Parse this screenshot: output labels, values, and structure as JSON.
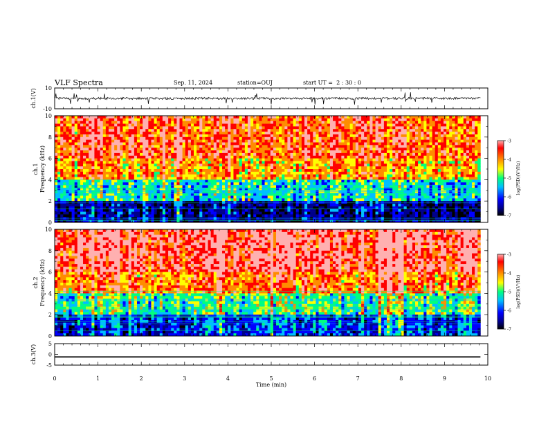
{
  "header": {
    "title": "VLF Spectra",
    "date": "Sep. 11, 2024",
    "station": "station=OUJ",
    "start": "start UT =  2 : 30 : 0"
  },
  "colors": {
    "spectrogram_scale": [
      "#000000",
      "#00008b",
      "#0000ff",
      "#00bfff",
      "#00ff7f",
      "#ffff00",
      "#ff8c00",
      "#ff0000",
      "#ffb0b0"
    ],
    "trace": "#000000",
    "frame": "#000000"
  },
  "chart_data": [
    {
      "type": "line",
      "name": "waveform-ch1",
      "ylabel": "ch.1(V)",
      "ylim": [
        -10,
        10
      ],
      "yticks": [
        "10",
        "-10"
      ],
      "x_range_min": [
        0,
        9.83
      ],
      "baseline": 0,
      "description_values": "continuous noise around 0 V with spikes up to about ±6 V"
    },
    {
      "type": "heatmap",
      "name": "spectrogram-ch1",
      "ylabel_top": "ch.1",
      "ylabel": "Frequency (kHz)",
      "ylim": [
        0,
        10
      ],
      "yticks": [
        "0",
        "2",
        "4",
        "6",
        "8",
        "10"
      ],
      "colorbar": {
        "label": "log(PSD)(V²/Hz)",
        "ticks": [
          "-3",
          "-4",
          "-5",
          "-6",
          "-7"
        ],
        "range": [
          -7,
          -3
        ]
      },
      "bands_khz": [
        {
          "from": 0,
          "to": 2,
          "level": -6.3
        },
        {
          "from": 2,
          "to": 4,
          "level": -5.2
        },
        {
          "from": 4,
          "to": 6,
          "level": -4.2
        },
        {
          "from": 6,
          "to": 10,
          "level": -3.8
        }
      ]
    },
    {
      "type": "heatmap",
      "name": "spectrogram-ch2",
      "ylabel_top": "ch.2",
      "ylabel": "Frequency (kHz)",
      "ylim": [
        0,
        10
      ],
      "yticks": [
        "0",
        "2",
        "4",
        "6",
        "8",
        "10"
      ],
      "colorbar": {
        "label": "log(PSD)(V²/Hz)",
        "ticks": [
          "-3",
          "-4",
          "-5",
          "-6",
          "-7"
        ],
        "range": [
          -7,
          -3
        ]
      },
      "bands_khz": [
        {
          "from": 0,
          "to": 2,
          "level": -5.9
        },
        {
          "from": 2,
          "to": 4,
          "level": -5.0
        },
        {
          "from": 4,
          "to": 6,
          "level": -4.0
        },
        {
          "from": 6,
          "to": 10,
          "level": -3.5
        }
      ]
    },
    {
      "type": "line",
      "name": "waveform-ch3",
      "ylabel": "ch.3(V)",
      "ylim": [
        -5,
        5
      ],
      "yticks": [
        "5",
        "0",
        "-5"
      ],
      "x_range_min": [
        0,
        9.83
      ],
      "value": -1.2
    }
  ],
  "x_axis": {
    "label": "Time (min)",
    "ticks": [
      "0",
      "1",
      "2",
      "3",
      "4",
      "5",
      "6",
      "7",
      "8",
      "9",
      "10"
    ],
    "range": [
      0,
      10
    ]
  }
}
